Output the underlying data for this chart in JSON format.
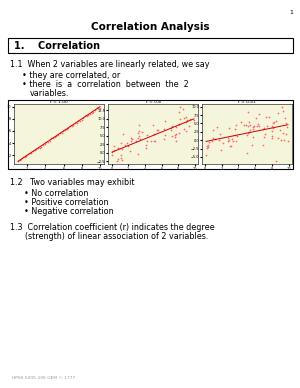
{
  "title": "Correlation Analysis",
  "page_number": "1",
  "section_header": "1.    Correlation",
  "item_1_1": "1.1  When 2 variables are linearly related, we say",
  "bullet_1a": "they are correlated, or",
  "bullet_1b_line1": "there  is  a  correlation  between  the  2",
  "bullet_1b_line2": "variables.",
  "item_1_2": "1.2   Two variables may exhibit",
  "bullet_2a": "No correlation",
  "bullet_2b": "Positive correlation",
  "bullet_2c": "Negative correlation",
  "item_1_3_line1": "1.3  Correlation coefficient (r) indicates the degree",
  "item_1_3_line2": "      (strength) of linear association of 2 variables.",
  "footer": "HPSS 5005-106 GEM © 1777",
  "bg_color": "#ffffff",
  "plot_bg": "#f5f5dc",
  "dot_color": "#ff6666",
  "line_color": "#cc0000",
  "title_fontsize": 7.5,
  "body_fontsize": 5.8,
  "section_fontsize": 7.0,
  "footer_fontsize": 3.2
}
